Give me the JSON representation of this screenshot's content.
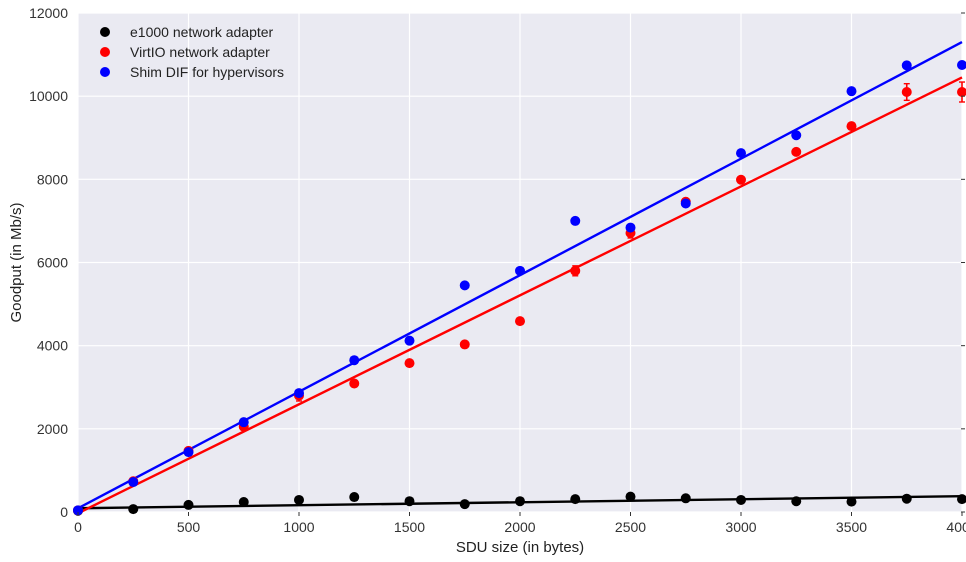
{
  "chart_data": {
    "type": "scatter",
    "xlabel": "SDU size (in bytes)",
    "ylabel": "Goodput (in Mb/s)",
    "xlim": [
      0,
      4000
    ],
    "ylim": [
      0,
      12000
    ],
    "xticks": [
      0,
      500,
      1000,
      1500,
      2000,
      2500,
      3000,
      3500,
      4000
    ],
    "yticks": [
      0,
      2000,
      4000,
      6000,
      8000,
      10000,
      12000
    ],
    "grid": true,
    "legend_position": "top-left",
    "background_color": "#eaeaf2",
    "grid_color": "#ffffff",
    "series": [
      {
        "name": "e1000 network adapter",
        "color": "#000000",
        "x": [
          0,
          250,
          500,
          750,
          1000,
          1250,
          1500,
          1750,
          2000,
          2250,
          2500,
          2750,
          3000,
          3250,
          3500,
          3750,
          4000
        ],
        "y": [
          30,
          70,
          170,
          240,
          290,
          360,
          260,
          190,
          260,
          310,
          370,
          330,
          290,
          260,
          250,
          320,
          310
        ],
        "fit": [
          90,
          380
        ]
      },
      {
        "name": "VirtIO network adapter",
        "color": "#ff0000",
        "x": [
          0,
          250,
          500,
          750,
          1000,
          1250,
          1500,
          1750,
          2000,
          2250,
          2500,
          2750,
          3000,
          3250,
          3500,
          3750,
          4000
        ],
        "y": [
          40,
          740,
          1470,
          2050,
          2800,
          3090,
          3580,
          4030,
          4590,
          5800,
          6710,
          7460,
          7990,
          8660,
          9280,
          10100,
          10100
        ],
        "err": [
          0,
          50,
          50,
          60,
          130,
          80,
          60,
          50,
          50,
          120,
          120,
          60,
          50,
          60,
          80,
          200,
          240
        ],
        "fit": [
          -30,
          10450
        ]
      },
      {
        "name": "Shim DIF for hypervisors",
        "color": "#0000ff",
        "x": [
          0,
          250,
          500,
          750,
          1000,
          1250,
          1500,
          1750,
          2000,
          2250,
          2500,
          2750,
          3000,
          3250,
          3500,
          3750,
          4000
        ],
        "y": [
          40,
          720,
          1440,
          2160,
          2860,
          3650,
          4120,
          5450,
          5800,
          7000,
          6840,
          7420,
          8630,
          9060,
          10120,
          10740,
          10750
        ],
        "err": [
          0,
          40,
          40,
          40,
          50,
          40,
          40,
          40,
          40,
          40,
          40,
          40,
          60,
          40,
          60,
          80,
          80
        ],
        "fit": [
          90,
          11300
        ]
      }
    ]
  }
}
